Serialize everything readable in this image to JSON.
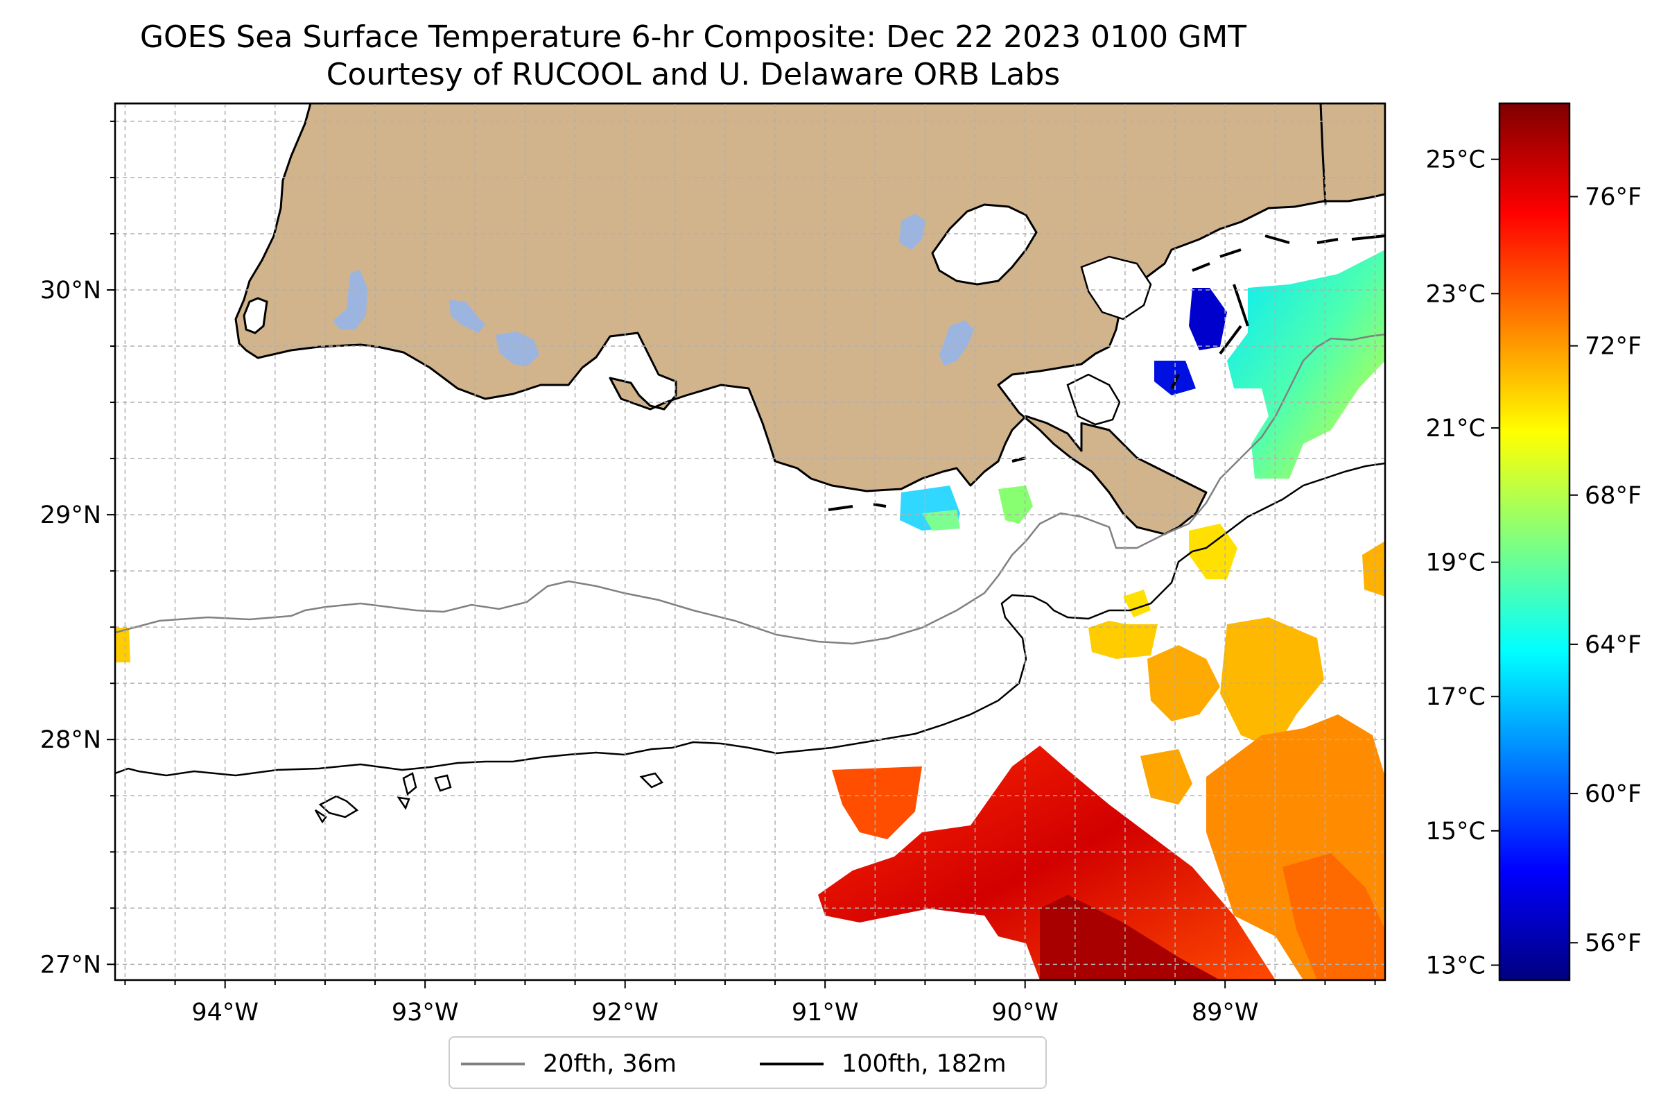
{
  "title_line1": "GOES Sea Surface Temperature 6-hr Composite: Dec 22 2023 0100 GMT",
  "title_line2": "Courtesy of RUCOOL and U. Delaware ORB Labs",
  "map": {
    "lon_range": [
      -94.55,
      -88.2
    ],
    "lat_range": [
      26.93,
      30.83
    ],
    "land_color": "#d2b48c",
    "lake_color": "#9bb5e0",
    "gridlines": "dashed light gray every 0.25 degree",
    "x_ticks": [
      "94°W",
      "93°W",
      "92°W",
      "91°W",
      "90°W",
      "89°W"
    ],
    "y_ticks": [
      "27°N",
      "28°N",
      "29°N",
      "30°N"
    ]
  },
  "colorbar": {
    "colormap": "jet",
    "celsius_ticks": [
      "13°C",
      "15°C",
      "17°C",
      "19°C",
      "21°C",
      "23°C",
      "25°C"
    ],
    "fahrenheit_ticks": [
      "56°F",
      "60°F",
      "64°F",
      "68°F",
      "72°F",
      "76°F"
    ],
    "range_f": [
      55,
      78.5
    ]
  },
  "legend": {
    "items": [
      {
        "label": "20fth, 36m",
        "color": "#808080"
      },
      {
        "label": "100fth, 182m",
        "color": "#000000"
      }
    ]
  }
}
